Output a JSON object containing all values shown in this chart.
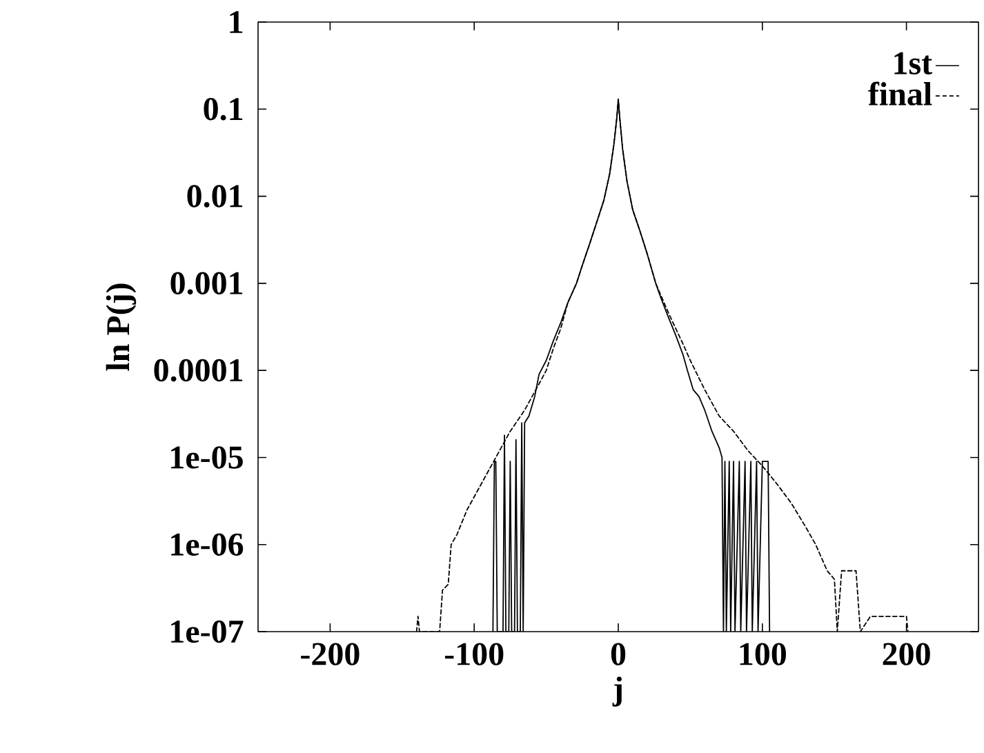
{
  "chart_data": {
    "type": "line",
    "xlabel": "j",
    "ylabel": "ln P(j)",
    "log": "y",
    "legend": "top right",
    "grid": false,
    "marker": "none",
    "xlim": [
      -250,
      250
    ],
    "xticks": [
      -200,
      -100,
      0,
      100,
      200
    ],
    "ylim": [
      1e-07,
      1
    ],
    "yticks": [
      1,
      0.1,
      0.01,
      0.001,
      0.0001,
      {
        "value": 1e-05,
        "label": "1e-05"
      },
      {
        "value": 1e-06,
        "label": "1e-06"
      },
      {
        "value": 1e-07,
        "label": "1e-07"
      }
    ],
    "series": [
      {
        "name": "1st",
        "color": "#000000",
        "line_style": "solid",
        "x": [
          -87,
          -86,
          -85,
          -84,
          -80,
          -79,
          -78,
          -76,
          -75,
          -74,
          -72,
          -71,
          -70,
          -68,
          -67,
          -66,
          -65,
          -62,
          -58,
          -55,
          -50,
          -45,
          -40,
          -35,
          -29,
          -25,
          -20,
          -15,
          -10,
          -6,
          -3,
          -1,
          0,
          1,
          3,
          6,
          10,
          15,
          20,
          26,
          30,
          35,
          40,
          45,
          48,
          52,
          56,
          60,
          65,
          70,
          72,
          73,
          74,
          75,
          77,
          78,
          80,
          81,
          84,
          85,
          88,
          89,
          92,
          93,
          96,
          97,
          100,
          104,
          105
        ],
        "values": [
          1e-07,
          9e-06,
          9e-06,
          1e-07,
          1e-07,
          1.8e-05,
          1e-07,
          1e-07,
          9e-06,
          1e-07,
          1e-07,
          1.6e-05,
          1e-07,
          1e-07,
          2.5e-05,
          1e-07,
          2.5e-05,
          3e-05,
          5e-05,
          9e-05,
          0.00013,
          0.00022,
          0.00035,
          0.0006,
          0.001,
          0.0016,
          0.0028,
          0.005,
          0.009,
          0.018,
          0.04,
          0.08,
          0.13,
          0.08,
          0.035,
          0.015,
          0.007,
          0.004,
          0.0022,
          0.001,
          0.00065,
          0.0004,
          0.00025,
          0.00015,
          0.0001,
          6e-05,
          5e-05,
          3.5e-05,
          2e-05,
          1.3e-05,
          1e-05,
          1e-07,
          9e-06,
          1e-07,
          9e-06,
          1e-07,
          9e-06,
          1e-07,
          9e-06,
          1e-07,
          9e-06,
          1e-07,
          9e-06,
          1e-07,
          9e-06,
          1e-07,
          9e-06,
          9e-06,
          1e-07
        ]
      },
      {
        "name": "final",
        "color": "#000000",
        "line_style": "dashed",
        "x": [
          -140,
          -139,
          -138,
          -124,
          -122,
          -118,
          -116,
          -112,
          -105,
          -95,
          -85,
          -75,
          -65,
          -55,
          -50,
          -45,
          -40,
          -35,
          -29,
          -25,
          -20,
          -15,
          -10,
          -6,
          -3,
          -1,
          0,
          1,
          3,
          6,
          10,
          15,
          20,
          26,
          30,
          35,
          40,
          45,
          50,
          60,
          70,
          80,
          90,
          100,
          110,
          120,
          130,
          137,
          145,
          150,
          152,
          155,
          165,
          168,
          175,
          200,
          201
        ],
        "values": [
          1e-07,
          1.5e-07,
          1e-07,
          1e-07,
          3e-07,
          3.5e-07,
          1e-06,
          1.3e-06,
          2.5e-06,
          5e-06,
          1e-05,
          2e-05,
          3.5e-05,
          7e-05,
          0.0001,
          0.00018,
          0.0003,
          0.0006,
          0.001,
          0.0016,
          0.0028,
          0.005,
          0.009,
          0.018,
          0.04,
          0.08,
          0.13,
          0.08,
          0.035,
          0.015,
          0.007,
          0.004,
          0.0022,
          0.001,
          0.0007,
          0.00045,
          0.0003,
          0.0002,
          0.00013,
          6e-05,
          3e-05,
          2e-05,
          1.2e-05,
          8e-06,
          5e-06,
          3e-06,
          1.6e-06,
          1e-06,
          5e-07,
          4e-07,
          1e-07,
          5e-07,
          5e-07,
          1e-07,
          1.5e-07,
          1.5e-07,
          1e-07
        ]
      }
    ]
  }
}
